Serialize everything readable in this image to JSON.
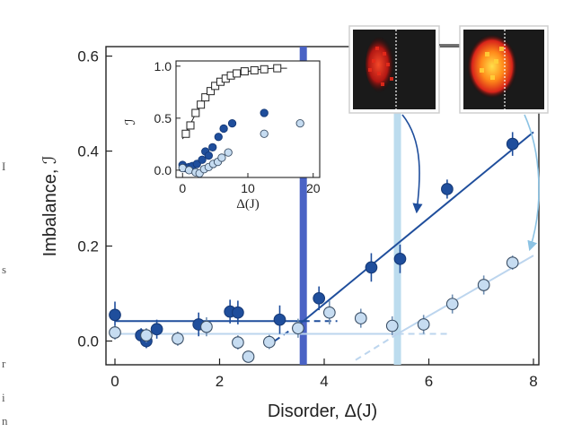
{
  "chart_data": [
    {
      "type": "scatter",
      "xlabel": "Disorder, Δ(J)",
      "ylabel": "Imbalance, ℐ",
      "xlim": [
        0,
        8
      ],
      "ylim": [
        -0.05,
        0.62
      ],
      "xticks": [
        "0",
        "2",
        "4",
        "6",
        "8"
      ],
      "yticks": [
        "0.0",
        "0.2",
        "0.4",
        "0.6"
      ],
      "series": [
        {
          "color": "#1f4e9c",
          "marker": "filled-circle",
          "points": [
            {
              "x": 0.0,
              "y": 0.055,
              "err": 0.028
            },
            {
              "x": 0.5,
              "y": 0.012,
              "err": 0.015
            },
            {
              "x": 0.6,
              "y": 0.0,
              "err": 0.015
            },
            {
              "x": 0.8,
              "y": 0.025,
              "err": 0.02
            },
            {
              "x": 1.6,
              "y": 0.035,
              "err": 0.025
            },
            {
              "x": 2.2,
              "y": 0.062,
              "err": 0.025
            },
            {
              "x": 2.35,
              "y": 0.06,
              "err": 0.025
            },
            {
              "x": 3.15,
              "y": 0.045,
              "err": 0.03
            },
            {
              "x": 3.9,
              "y": 0.09,
              "err": 0.025
            },
            {
              "x": 4.9,
              "y": 0.155,
              "err": 0.03
            },
            {
              "x": 5.45,
              "y": 0.173,
              "err": 0.03
            },
            {
              "x": 6.35,
              "y": 0.32,
              "err": 0.02
            },
            {
              "x": 7.6,
              "y": 0.415,
              "err": 0.025
            }
          ]
        },
        {
          "color": "#bcd5ee",
          "marker": "open-circle",
          "points": [
            {
              "x": 0.0,
              "y": 0.018,
              "err": 0.015
            },
            {
              "x": 0.6,
              "y": 0.012,
              "err": 0.015
            },
            {
              "x": 1.2,
              "y": 0.005,
              "err": 0.015
            },
            {
              "x": 1.75,
              "y": 0.03,
              "err": 0.02
            },
            {
              "x": 2.35,
              "y": -0.003,
              "err": 0.015
            },
            {
              "x": 2.55,
              "y": -0.033,
              "err": 0.01
            },
            {
              "x": 2.95,
              "y": -0.002,
              "err": 0.015
            },
            {
              "x": 3.5,
              "y": 0.027,
              "err": 0.02
            },
            {
              "x": 4.1,
              "y": 0.06,
              "err": 0.025
            },
            {
              "x": 4.7,
              "y": 0.048,
              "err": 0.02
            },
            {
              "x": 5.3,
              "y": 0.032,
              "err": 0.02
            },
            {
              "x": 5.9,
              "y": 0.035,
              "err": 0.02
            },
            {
              "x": 6.45,
              "y": 0.078,
              "err": 0.02
            },
            {
              "x": 7.05,
              "y": 0.118,
              "err": 0.02
            },
            {
              "x": 7.6,
              "y": 0.165,
              "err": 0.015
            }
          ]
        }
      ],
      "fit_lines": [
        {
          "color": "#1f4e9c",
          "style": "solid",
          "points": [
            [
              0,
              0.042
            ],
            [
              3.6,
              0.042
            ]
          ]
        },
        {
          "color": "#1f4e9c",
          "style": "dashed",
          "points": [
            [
              3.6,
              0.042
            ],
            [
              4.25,
              0.042
            ]
          ]
        },
        {
          "color": "#1f4e9c",
          "style": "dashed",
          "points": [
            [
              3.05,
              0.0
            ],
            [
              3.6,
              0.042
            ]
          ]
        },
        {
          "color": "#1f4e9c",
          "style": "solid",
          "points": [
            [
              3.6,
              0.042
            ],
            [
              8.0,
              0.44
            ]
          ]
        },
        {
          "color": "#bcd5ee",
          "style": "solid",
          "points": [
            [
              0,
              0.015
            ],
            [
              5.4,
              0.015
            ]
          ]
        },
        {
          "color": "#bcd5ee",
          "style": "dashed",
          "points": [
            [
              5.4,
              0.015
            ],
            [
              6.4,
              0.015
            ]
          ]
        },
        {
          "color": "#bcd5ee",
          "style": "dashed",
          "points": [
            [
              4.6,
              -0.04
            ],
            [
              5.4,
              0.015
            ]
          ]
        },
        {
          "color": "#bcd5ee",
          "style": "solid",
          "points": [
            [
              5.4,
              0.015
            ],
            [
              8.0,
              0.18
            ]
          ]
        }
      ],
      "bands": [
        {
          "x": 3.6,
          "color": "#4a63c5"
        },
        {
          "x": 5.4,
          "color": "#bcdcee"
        }
      ]
    },
    {
      "type": "scatter",
      "inset": true,
      "xlabel": "Δ(J)",
      "ylabel": "ℐ",
      "xlim": [
        -1,
        21
      ],
      "ylim": [
        -0.07,
        1.05
      ],
      "xticks": [
        "0",
        "10",
        "20"
      ],
      "yticks": [
        "0.0",
        "0.5",
        "1.0"
      ],
      "series": [
        {
          "color": "#222222",
          "marker": "open-square",
          "points": [
            {
              "x": 0.5,
              "y": 0.35
            },
            {
              "x": 1.2,
              "y": 0.43
            },
            {
              "x": 2.0,
              "y": 0.55
            },
            {
              "x": 2.8,
              "y": 0.63
            },
            {
              "x": 3.5,
              "y": 0.7
            },
            {
              "x": 4.3,
              "y": 0.76
            },
            {
              "x": 5.0,
              "y": 0.81
            },
            {
              "x": 5.8,
              "y": 0.85
            },
            {
              "x": 6.6,
              "y": 0.88
            },
            {
              "x": 7.4,
              "y": 0.91
            },
            {
              "x": 8.3,
              "y": 0.93
            },
            {
              "x": 9.5,
              "y": 0.95
            },
            {
              "x": 11.0,
              "y": 0.96
            },
            {
              "x": 12.5,
              "y": 0.97
            },
            {
              "x": 14.5,
              "y": 0.98
            }
          ],
          "curve": [
            [
              0,
              0.3
            ],
            [
              1,
              0.42
            ],
            [
              2,
              0.54
            ],
            [
              3,
              0.64
            ],
            [
              4,
              0.72
            ],
            [
              5,
              0.79
            ],
            [
              6,
              0.84
            ],
            [
              7,
              0.88
            ],
            [
              8,
              0.91
            ],
            [
              10,
              0.95
            ],
            [
              12,
              0.97
            ],
            [
              14,
              0.98
            ],
            [
              16,
              0.98
            ]
          ]
        },
        {
          "color": "#1f4e9c",
          "marker": "filled-circle",
          "points": [
            {
              "x": 0.0,
              "y": 0.05
            },
            {
              "x": 0.5,
              "y": 0.02
            },
            {
              "x": 1.0,
              "y": 0.03
            },
            {
              "x": 1.5,
              "y": 0.04
            },
            {
              "x": 2.2,
              "y": 0.06
            },
            {
              "x": 3.0,
              "y": 0.1
            },
            {
              "x": 3.5,
              "y": 0.18
            },
            {
              "x": 4.0,
              "y": 0.14
            },
            {
              "x": 4.6,
              "y": 0.22
            },
            {
              "x": 5.5,
              "y": 0.32
            },
            {
              "x": 6.3,
              "y": 0.4
            },
            {
              "x": 7.6,
              "y": 0.45
            },
            {
              "x": 12.5,
              "y": 0.55
            }
          ]
        },
        {
          "color": "#bcd5ee",
          "marker": "open-circle",
          "points": [
            {
              "x": 0.0,
              "y": 0.02
            },
            {
              "x": 1.0,
              "y": 0.0
            },
            {
              "x": 2.0,
              "y": -0.02
            },
            {
              "x": 2.6,
              "y": -0.03
            },
            {
              "x": 3.3,
              "y": 0.01
            },
            {
              "x": 4.0,
              "y": 0.03
            },
            {
              "x": 4.7,
              "y": 0.06
            },
            {
              "x": 5.4,
              "y": 0.08
            },
            {
              "x": 6.0,
              "y": 0.12
            },
            {
              "x": 7.0,
              "y": 0.17
            },
            {
              "x": 12.5,
              "y": 0.35
            },
            {
              "x": 18.0,
              "y": 0.45
            }
          ]
        }
      ]
    }
  ],
  "edge_text": [
    "I",
    "s",
    "r",
    "i",
    "n"
  ]
}
